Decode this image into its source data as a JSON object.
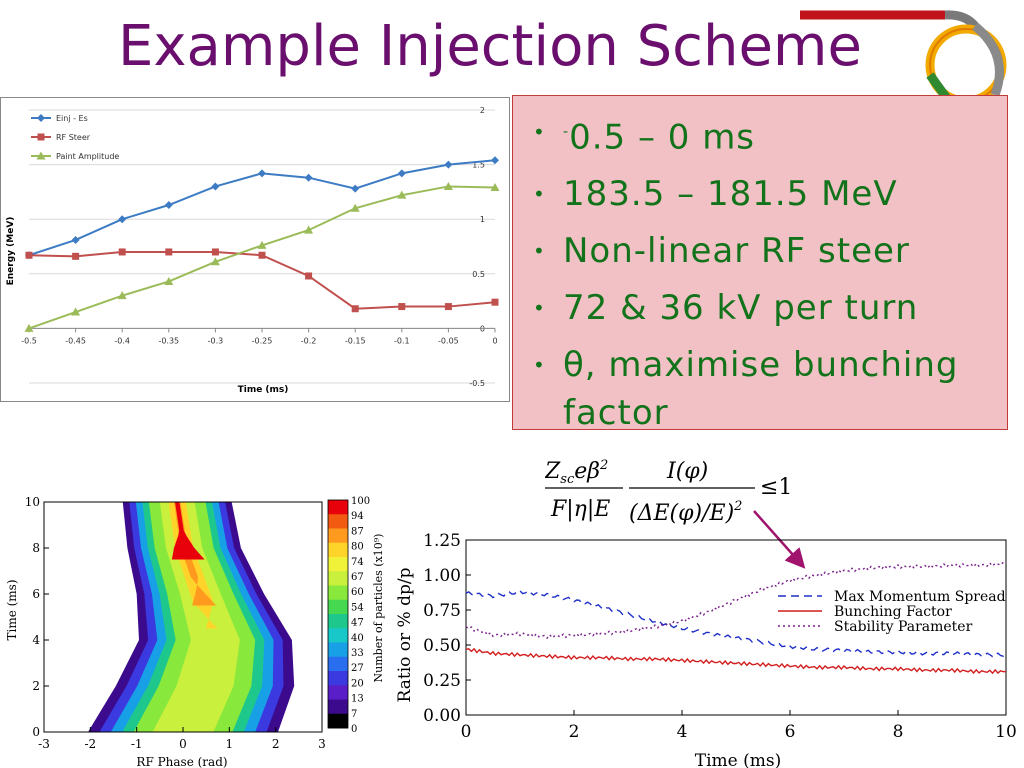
{
  "slide": {
    "title": "Example Injection Scheme",
    "bullets": [
      {
        "sup": "-",
        "text": "0.5 – 0 ms"
      },
      {
        "sup": "",
        "text": "183.5 – 181.5 MeV"
      },
      {
        "sup": "",
        "text": "Non-linear RF steer"
      },
      {
        "sup": "",
        "text": "72 & 36 kV per turn"
      },
      {
        "sup": "",
        "text": "θ, maximise bunching factor"
      }
    ],
    "bullet_marker": "•",
    "formula": {
      "num1": "Z",
      "num1_sub": "sc",
      "num1_rest": "eβ",
      "num1_sup": "2",
      "den1": "F|η|E",
      "num2": "I(φ)",
      "den2": "(ΔE(φ)/E)",
      "den2_sup": "2",
      "rhs": "≤1"
    },
    "colors": {
      "title": "#6b0f6f",
      "bullet_text": "#12731a",
      "bullet_box": "#f2c1c6",
      "bullet_border": "#c23a3a",
      "arrow": "#a0146e"
    }
  },
  "chart_data": [
    {
      "type": "line",
      "x": [
        -0.5,
        -0.45,
        -0.4,
        -0.35,
        -0.3,
        -0.25,
        -0.2,
        -0.15,
        -0.1,
        -0.05,
        0
      ],
      "series": [
        {
          "name": "Einj - Es",
          "color": "#3d7cc4",
          "marker": "diamond",
          "values": [
            0.67,
            0.81,
            1.0,
            1.13,
            1.3,
            1.42,
            1.38,
            1.28,
            1.42,
            1.5,
            1.54
          ]
        },
        {
          "name": "RF Steer",
          "color": "#c0504d",
          "marker": "square",
          "values": [
            0.67,
            0.66,
            0.7,
            0.7,
            0.7,
            0.67,
            0.48,
            0.18,
            0.2,
            0.2,
            0.24
          ]
        },
        {
          "name": "Paint Amplitude",
          "color": "#9bbb59",
          "marker": "triangle",
          "values": [
            0,
            0.15,
            0.3,
            0.43,
            0.61,
            0.76,
            0.9,
            1.1,
            1.22,
            1.3,
            1.29
          ]
        }
      ],
      "xlabel": "Time (ms)",
      "ylabel": "Energy (MeV)",
      "xlim": [
        -0.5,
        0
      ],
      "ylim": [
        -0.5,
        2
      ],
      "xticks": [
        "-0.5",
        "-0.45",
        "-0.4",
        "-0.35",
        "-0.3",
        "-0.25",
        "-0.2",
        "-0.15",
        "-0.1",
        "-0.05",
        "0"
      ],
      "yticks": [
        "2",
        "1.5",
        "1",
        "0.5",
        "0",
        "-0.5"
      ],
      "legend": "top-left",
      "grid": true
    },
    {
      "type": "heatmap",
      "xlabel": "RF Phase (rad)",
      "ylabel": "Time (ms)",
      "xlim": [
        -3,
        3
      ],
      "ylim": [
        0,
        10
      ],
      "xticks": [
        "-3",
        "-2",
        "-1",
        "0",
        "1",
        "2",
        "3"
      ],
      "yticks": [
        "0",
        "2",
        "4",
        "6",
        "8",
        "10"
      ],
      "colorbar_label": "Number of particles (x10⁹)",
      "colorbar_ticks": [
        "100",
        "94",
        "87",
        "80",
        "74",
        "67",
        "60",
        "54",
        "47",
        "40",
        "33",
        "27",
        "20",
        "13",
        "7",
        "0"
      ],
      "colorbar_colors": [
        "#e8000b",
        "#f25a12",
        "#ff9a1e",
        "#ffd42a",
        "#f0f23a",
        "#c8f03c",
        "#88e83c",
        "#46d850",
        "#1ec88c",
        "#18c8c8",
        "#18a0e6",
        "#2a6ef0",
        "#3a3ae0",
        "#5a1ec8",
        "#3c0a8c",
        "#000000"
      ],
      "band": {
        "left_edge": [
          [
            0,
            -2.05
          ],
          [
            2,
            -1.45
          ],
          [
            4,
            -0.95
          ],
          [
            6,
            -1.0
          ],
          [
            8,
            -1.2
          ],
          [
            10,
            -1.3
          ]
        ],
        "right_edge": [
          [
            0,
            2.05
          ],
          [
            2,
            2.4
          ],
          [
            4,
            2.35
          ],
          [
            6,
            1.75
          ],
          [
            8,
            1.25
          ],
          [
            10,
            1.05
          ]
        ]
      }
    },
    {
      "type": "line",
      "xlabel": "Time (ms)",
      "ylabel": "Ratio or % dp/p",
      "xlim": [
        0,
        10
      ],
      "ylim": [
        0,
        1.25
      ],
      "xticks": [
        "0",
        "2",
        "4",
        "6",
        "8",
        "10"
      ],
      "yticks": [
        "1.25",
        "1.00",
        "0.75",
        "0.50",
        "0.25",
        "0.00"
      ],
      "legend": "right",
      "series": [
        {
          "name": "Max Momentum Spread",
          "color": "#1e2ec8",
          "dash": "8,5",
          "x": [
            0,
            0.5,
            1,
            1.5,
            2,
            2.5,
            3,
            3.5,
            4,
            4.5,
            5,
            5.5,
            6,
            6.5,
            7,
            7.5,
            8,
            8.5,
            9,
            9.5,
            10
          ],
          "values": [
            0.87,
            0.85,
            0.88,
            0.86,
            0.82,
            0.77,
            0.72,
            0.67,
            0.62,
            0.58,
            0.55,
            0.52,
            0.49,
            0.47,
            0.46,
            0.45,
            0.45,
            0.44,
            0.44,
            0.43,
            0.43
          ]
        },
        {
          "name": "Bunching Factor",
          "color": "#d21e1e",
          "dash": "",
          "x": [
            0,
            0.5,
            1,
            1.5,
            2,
            2.5,
            3,
            3.5,
            4,
            4.5,
            5,
            5.5,
            6,
            6.5,
            7,
            7.5,
            8,
            8.5,
            9,
            9.5,
            10
          ],
          "values": [
            0.47,
            0.44,
            0.43,
            0.42,
            0.41,
            0.41,
            0.4,
            0.4,
            0.39,
            0.38,
            0.37,
            0.36,
            0.35,
            0.34,
            0.34,
            0.33,
            0.33,
            0.32,
            0.32,
            0.31,
            0.31
          ]
        },
        {
          "name": "Stability Parameter",
          "color": "#7a1e8c",
          "dash": "2,3",
          "x": [
            0,
            0.5,
            1,
            1.5,
            2,
            2.5,
            3,
            3.5,
            4,
            4.5,
            5,
            5.5,
            6,
            6.5,
            7,
            7.5,
            8,
            8.5,
            9,
            9.5,
            10
          ],
          "values": [
            0.63,
            0.57,
            0.58,
            0.56,
            0.57,
            0.58,
            0.6,
            0.63,
            0.67,
            0.74,
            0.82,
            0.9,
            0.96,
            1.0,
            1.03,
            1.05,
            1.06,
            1.06,
            1.07,
            1.07,
            1.08
          ]
        }
      ]
    }
  ]
}
